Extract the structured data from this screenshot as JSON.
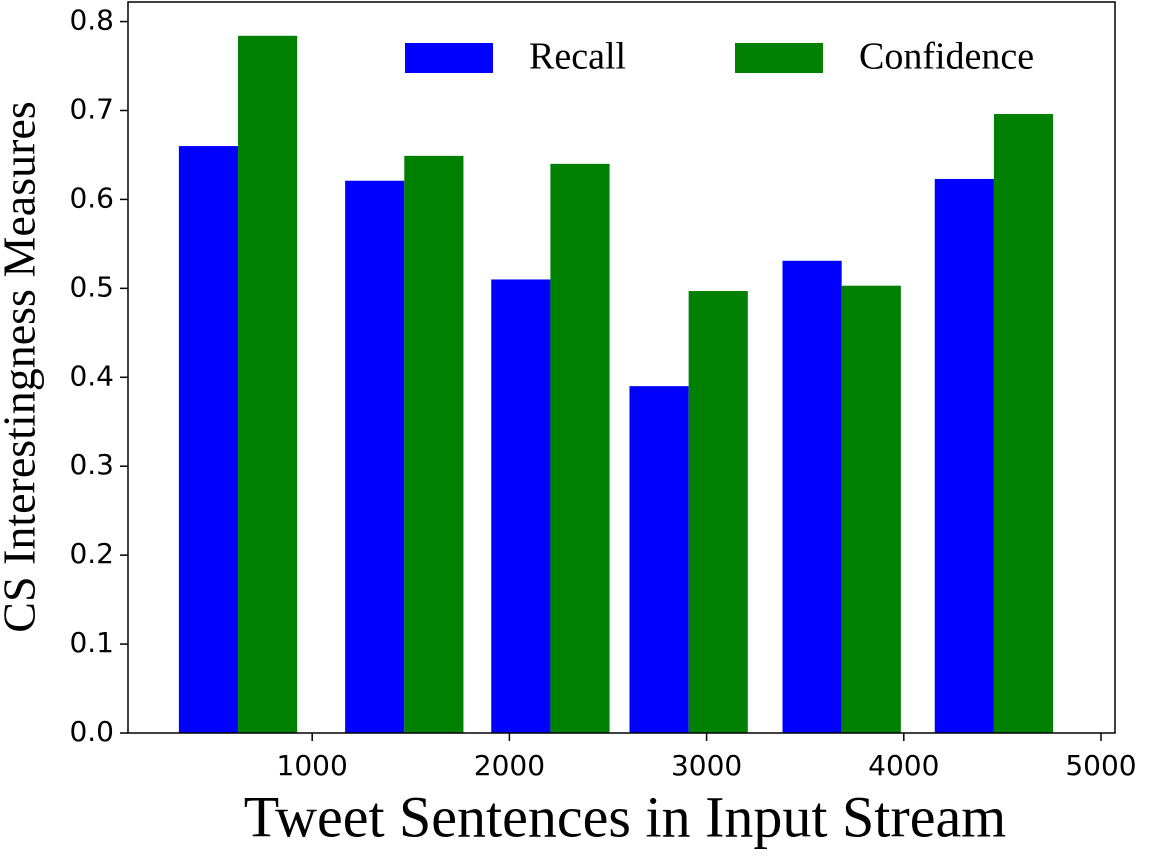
{
  "chart_data": {
    "type": "bar",
    "x": [
      624,
      1467,
      2208,
      2909,
      3685,
      4457
    ],
    "series": [
      {
        "name": "Recall",
        "color": "#0000ff",
        "values": [
          0.66,
          0.621,
          0.51,
          0.39,
          0.531,
          0.623
        ]
      },
      {
        "name": "Confidence",
        "color": "#008000",
        "values": [
          0.784,
          0.649,
          0.64,
          0.497,
          0.503,
          0.696
        ]
      }
    ],
    "xlabel": "Tweet Sentences in Input Stream",
    "ylabel": "CS Interestingness Measures",
    "xlim": [
      66,
      5071
    ],
    "xticks": [
      1000,
      2000,
      3000,
      4000,
      5000
    ],
    "ylim": [
      0,
      0.822
    ],
    "yticks": [
      0.0,
      0.1,
      0.2,
      0.3,
      0.4,
      0.5,
      0.6,
      0.7,
      0.8
    ],
    "legend": "upper right",
    "grid": false
  }
}
